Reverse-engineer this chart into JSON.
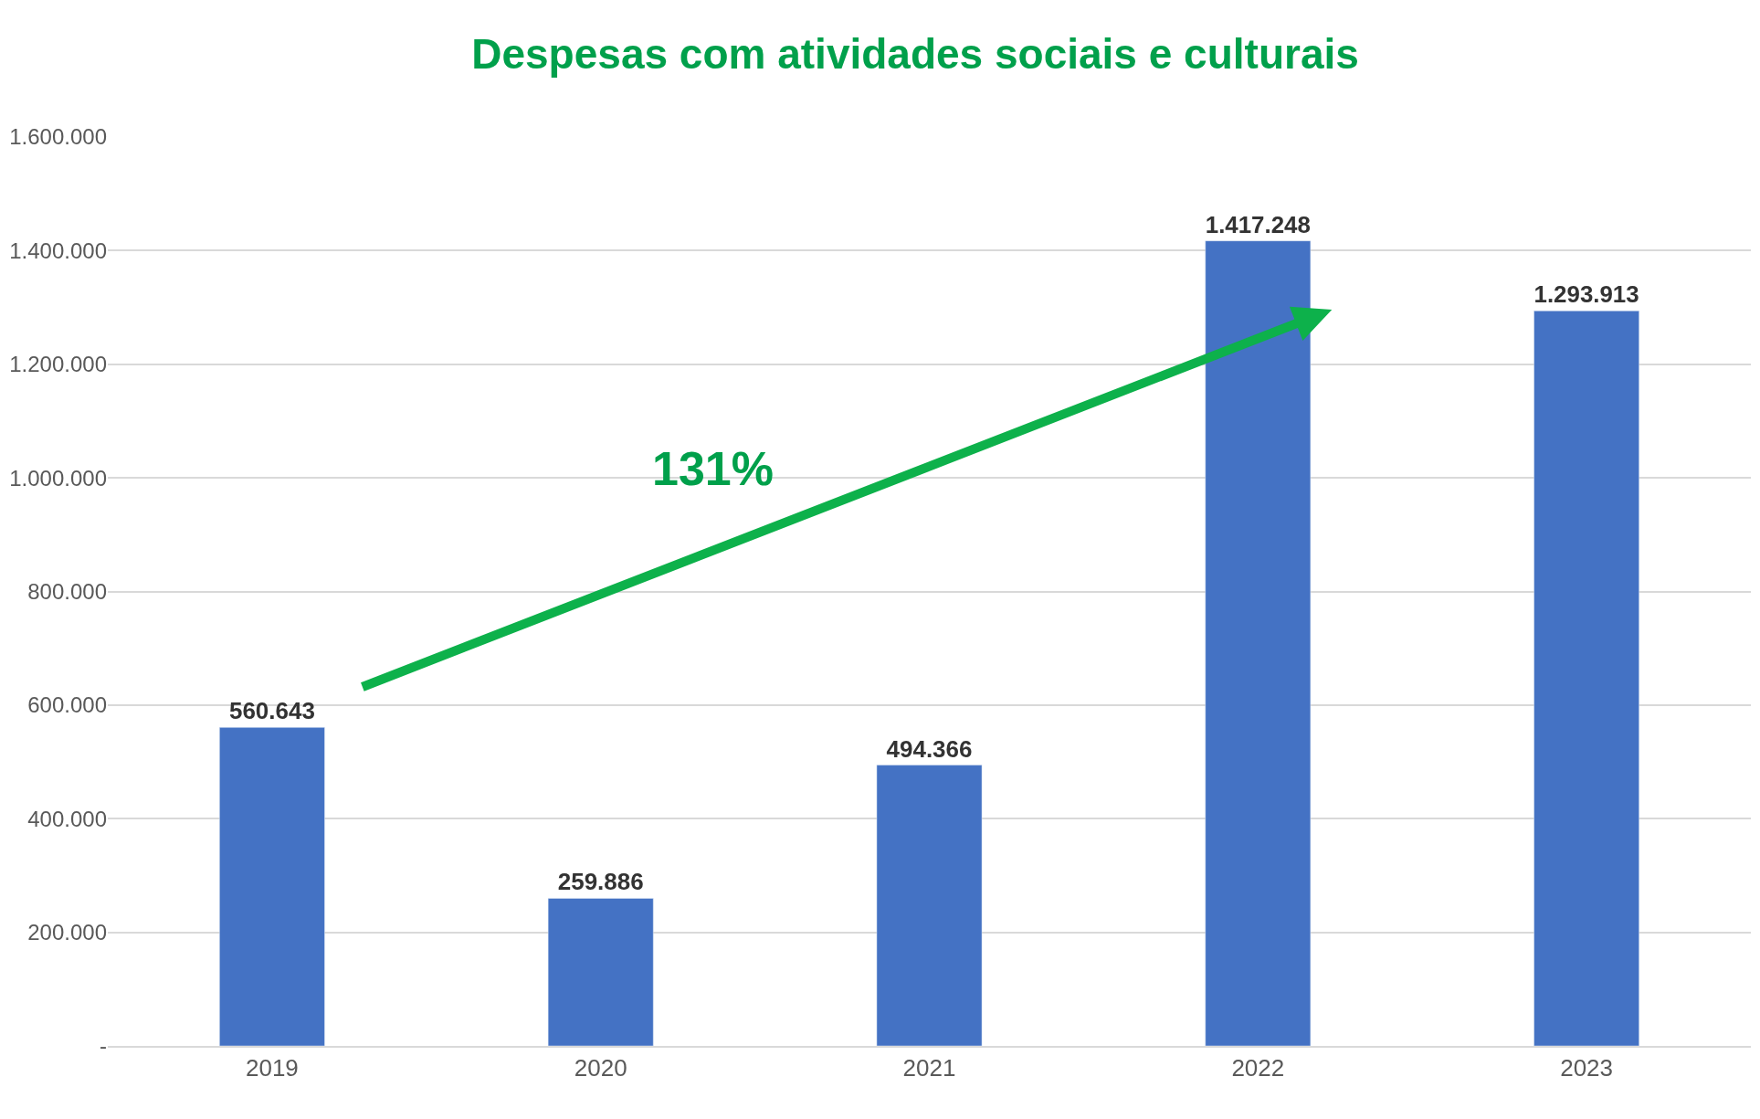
{
  "chart_data": {
    "type": "bar",
    "title": "Despesas com atividades sociais e culturais",
    "categories": [
      "2019",
      "2020",
      "2021",
      "2022",
      "2023"
    ],
    "values": [
      560643,
      259886,
      494366,
      1417248,
      1293913
    ],
    "value_labels": [
      "560.643",
      "259.886",
      "494.366",
      "1.417.248",
      "1.293.913"
    ],
    "color": "#4472c4",
    "ylim": [
      0,
      1600000
    ],
    "yticks": [
      {
        "value": 0,
        "label": "-"
      },
      {
        "value": 200000,
        "label": "200.000"
      },
      {
        "value": 400000,
        "label": "400.000"
      },
      {
        "value": 600000,
        "label": "600.000"
      },
      {
        "value": 800000,
        "label": "800.000"
      },
      {
        "value": 1000000,
        "label": "1.000.000"
      },
      {
        "value": 1200000,
        "label": "1.200.000"
      },
      {
        "value": 1400000,
        "label": "1.400.000"
      },
      {
        "value": 1600000,
        "label": "1.600.000"
      }
    ],
    "grid": "y",
    "annotations": [
      "131%"
    ]
  }
}
